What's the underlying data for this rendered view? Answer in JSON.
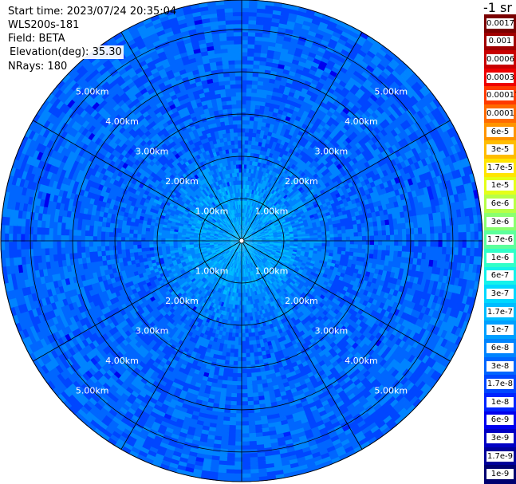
{
  "header": {
    "start_time": "Start time: 2023/07/24 20:35:04",
    "instrument": "WLS200s-181",
    "field": "Field: BETA",
    "elevation_label": "Elevation(deg):",
    "elevation_value": "35.30",
    "nrays": "NRays: 180"
  },
  "colorbar": {
    "unit": "-1 sr",
    "labels": [
      "0.0017",
      "0.001",
      "0.0006",
      "0.0003",
      "0.00017",
      "0.0001",
      "6e-5",
      "3e-5",
      "1.7e-5",
      "1e-5",
      "6e-6",
      "3e-6",
      "1.7e-6",
      "1e-6",
      "6e-7",
      "3e-7",
      "1.7e-7",
      "1e-7",
      "6e-8",
      "3e-8",
      "1.7e-8",
      "1e-8",
      "6e-9",
      "3e-9",
      "1.7e-9",
      "1e-9"
    ],
    "colors": [
      "#7a0000",
      "#a00000",
      "#c80000",
      "#ee0000",
      "#ff3a00",
      "#ff6a00",
      "#ff9400",
      "#ffbd00",
      "#ffe500",
      "#e5ff18",
      "#b8ff45",
      "#8aff6f",
      "#5cff9c",
      "#30ffc8",
      "#14f2ea",
      "#00d8ff",
      "#00bcff",
      "#00a0ff",
      "#0084ff",
      "#0066ff",
      "#0046ff",
      "#0024ff",
      "#0000ee",
      "#0000c4",
      "#00009a",
      "#000070"
    ]
  },
  "chart_data": {
    "type": "heatmap",
    "projection": "polar PPI scan",
    "field": "BETA",
    "nrays": 180,
    "range_rings_km": [
      1.0,
      2.0,
      3.0,
      4.0,
      5.0
    ],
    "ring_labels": [
      "1.00km",
      "2.00km",
      "3.00km",
      "4.00km",
      "5.00km"
    ],
    "max_range_km": 5.7,
    "azimuth_spokes_deg": [
      0,
      30,
      60,
      90,
      120,
      150,
      180,
      210,
      240,
      270,
      300,
      330
    ],
    "radial_profile": [
      {
        "range_km": 0.0,
        "value": "1.7e-7"
      },
      {
        "range_km": 0.5,
        "value": "1e-7"
      },
      {
        "range_km": 1.0,
        "value": "1e-7"
      },
      {
        "range_km": 1.5,
        "value": "6e-8"
      },
      {
        "range_km": 2.5,
        "value": "3e-8"
      },
      {
        "range_km": 4.0,
        "value": "3e-8"
      },
      {
        "range_km": 5.5,
        "value": "3e-8"
      }
    ]
  }
}
